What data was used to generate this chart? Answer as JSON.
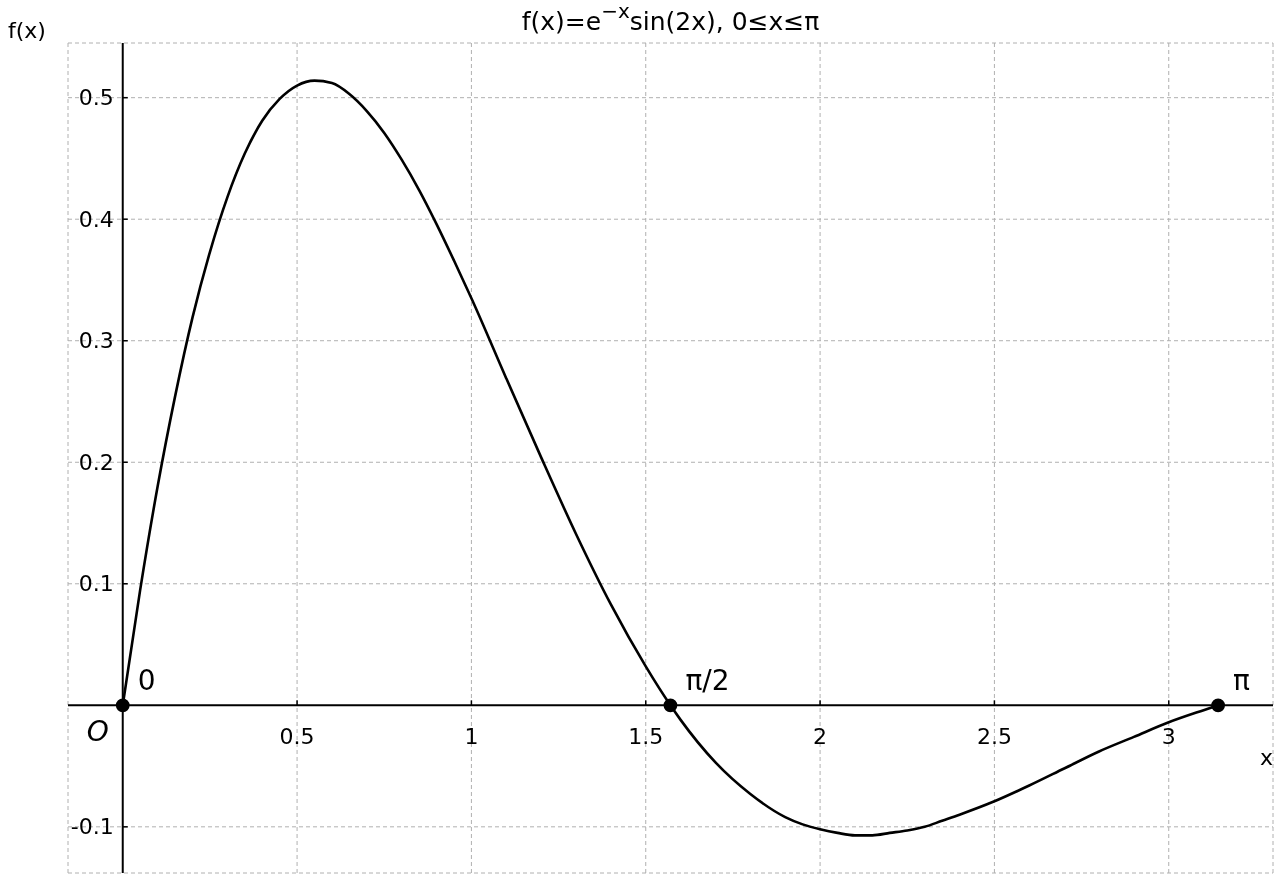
{
  "chart_data": {
    "type": "line",
    "title": "f(x)=e$^{−x}$sin(2x), 0≤x≤π",
    "xlabel": "x",
    "ylabel": "f(x)",
    "xlim": [
      -0.157,
      3.299
    ],
    "ylim": [
      -0.138,
      0.545
    ],
    "xticks": [
      0.5,
      1,
      1.5,
      2,
      2.5,
      3
    ],
    "yticks": [
      -0.1,
      0.1,
      0.2,
      0.3,
      0.4,
      0.5
    ],
    "grid": true,
    "series": [
      {
        "color": "#000000",
        "x": [
          0,
          0.05,
          0.1,
          0.15,
          0.2,
          0.25,
          0.3,
          0.35,
          0.4,
          0.45,
          0.5,
          0.55,
          0.6,
          0.65,
          0.7,
          0.75,
          0.8,
          0.85,
          0.9,
          0.95,
          1,
          1.1,
          1.2,
          1.3,
          1.4,
          1.5,
          1.5708,
          1.6,
          1.7,
          1.8,
          1.9,
          1.95,
          2,
          2.05,
          2.1,
          2.15,
          2.2,
          2.25,
          2.3,
          2.35,
          2.4,
          2.5,
          2.6,
          2.7,
          2.8,
          2.9,
          3,
          3.1,
          3.1416
        ],
        "values": [
          0,
          0.095,
          0.18,
          0.254,
          0.319,
          0.373,
          0.418,
          0.454,
          0.481,
          0.499,
          0.51,
          0.514,
          0.512,
          0.503,
          0.489,
          0.471,
          0.449,
          0.424,
          0.396,
          0.366,
          0.335,
          0.269,
          0.204,
          0.141,
          0.083,
          0.032,
          0,
          -0.012,
          -0.047,
          -0.073,
          -0.092,
          -0.098,
          -0.102,
          -0.105,
          -0.107,
          -0.107,
          -0.105,
          -0.103,
          -0.1,
          -0.095,
          -0.09,
          -0.079,
          -0.066,
          -0.052,
          -0.038,
          -0.026,
          -0.014,
          -0.004,
          0
        ]
      },
      {
        "type": "scatter",
        "color": "#000000",
        "marker": "circle",
        "x": [
          0,
          1.5708,
          3.1416
        ],
        "values": [
          0,
          0,
          0
        ]
      }
    ],
    "annotations": [
      {
        "text": "0",
        "x": 0,
        "y": 0
      },
      {
        "text": "π/2",
        "x": 1.5708,
        "y": 0
      },
      {
        "text": "π",
        "x": 3.1416,
        "y": 0
      },
      "O"
    ]
  }
}
